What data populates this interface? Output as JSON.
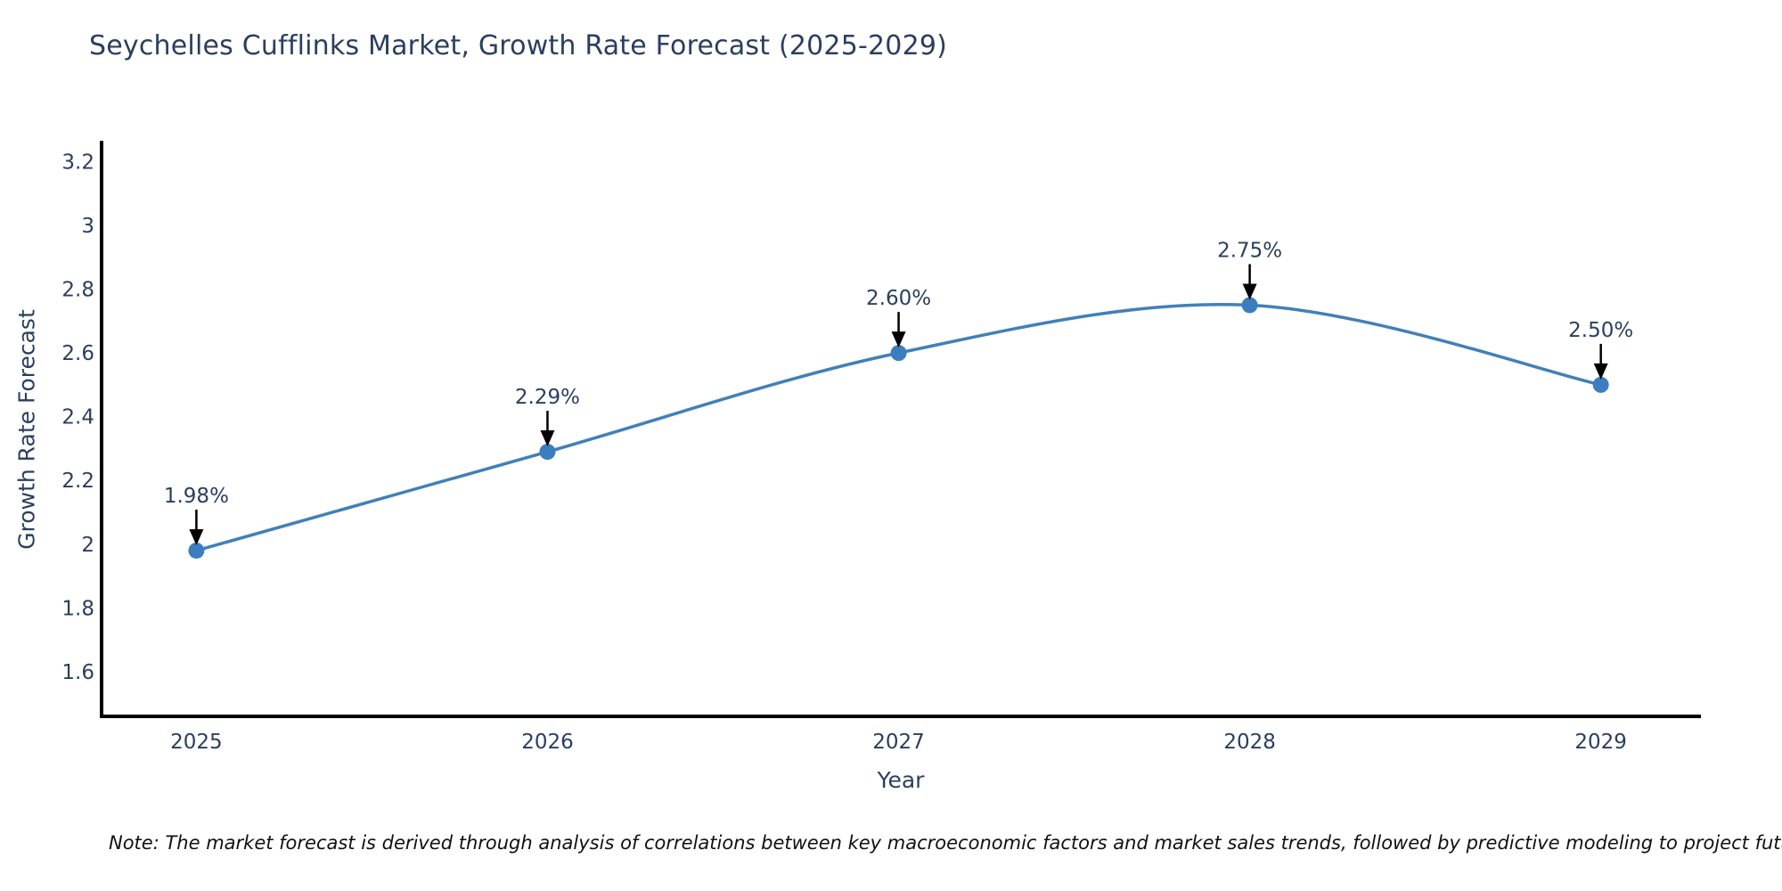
{
  "chart": {
    "title": "Seychelles Cufflinks Market, Growth Rate Forecast (2025-2029)",
    "xlabel": "Year",
    "ylabel": "Growth Rate Forecast",
    "note": "Note: The market forecast is derived through analysis of correlations between key macroeconomic factors and market sales trends, followed by predictive modeling to project future sales",
    "colors": {
      "title_text": "#2a3f5f",
      "tick_text": "#2a3f5f",
      "annotation_text": "#2a3f5f",
      "line": "#4180b8",
      "marker": "#3c7dbf",
      "axis": "#000000",
      "arrow": "#000000",
      "background": "#ffffff"
    }
  },
  "chart_data": {
    "type": "line",
    "title": "Seychelles Cufflinks Market, Growth Rate Forecast (2025-2029)",
    "xlabel": "Year",
    "ylabel": "Growth Rate Forecast",
    "x": [
      2025,
      2026,
      2027,
      2028,
      2029
    ],
    "series": [
      {
        "name": "Growth Rate Forecast",
        "values": [
          1.98,
          2.29,
          2.6,
          2.75,
          2.5
        ]
      }
    ],
    "point_labels": [
      "1.98%",
      "2.29%",
      "2.60%",
      "2.75%",
      "2.50%"
    ],
    "xtick_labels": [
      "2025",
      "2026",
      "2027",
      "2028",
      "2029"
    ],
    "ytick_values": [
      1.6,
      1.8,
      2,
      2.2,
      2.4,
      2.6,
      2.8,
      3,
      3.2
    ],
    "ytick_labels": [
      "1.6",
      "1.8",
      "2",
      "2.2",
      "2.4",
      "2.6",
      "2.8",
      "3",
      "3.2"
    ],
    "xlim": [
      2024.73,
      2029.285
    ],
    "ylim": [
      1.46,
      3.26
    ],
    "grid": false,
    "legend": "none",
    "line_shape": "spline",
    "annotations": "value labels with black arrows pointing to each marker"
  }
}
